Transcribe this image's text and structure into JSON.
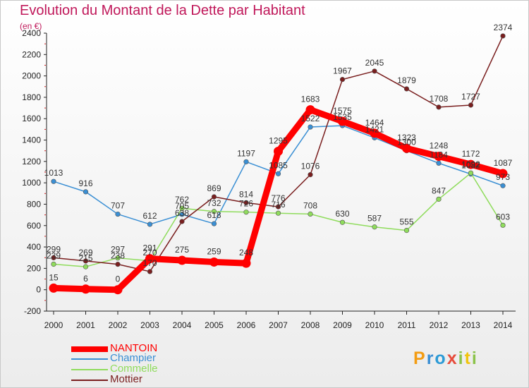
{
  "chart_data": {
    "type": "line",
    "title": "Evolution du Montant de la Dette par Habitant",
    "ylabel": "(en €)",
    "xlabel": "",
    "categories": [
      "2000",
      "2001",
      "2002",
      "2003",
      "2004",
      "2005",
      "2006",
      "2007",
      "2008",
      "2009",
      "2010",
      "2011",
      "2012",
      "2013",
      "2014"
    ],
    "ylim": [
      -200,
      2400
    ],
    "yticks": [
      -200,
      0,
      200,
      400,
      600,
      800,
      1000,
      1200,
      1400,
      1600,
      1800,
      2000,
      2200,
      2400
    ],
    "grid": false,
    "legend_position": "bottom-left",
    "series": [
      {
        "name": "NANTOIN",
        "color": "#ff0000",
        "values": [
          15,
          6,
          0,
          291,
          275,
          259,
          248,
          1295,
          1683,
          1575,
          1464,
          1323,
          1248,
          1172,
          1087
        ]
      },
      {
        "name": "Champier",
        "color": "#3a8fd4",
        "values": [
          1013,
          916,
          707,
          612,
          705,
          618,
          1197,
          1085,
          1522,
          1535,
          1421,
          1300,
          1184,
          1082,
          973
        ]
      },
      {
        "name": "Commelle",
        "color": "#8fdc5c",
        "values": [
          239,
          215,
          297,
          270,
          762,
          732,
          726,
          716,
          708,
          630,
          587,
          555,
          847,
          1092,
          603
        ]
      },
      {
        "name": "Mottier",
        "color": "#7a1f1f",
        "values": [
          299,
          269,
          238,
          170,
          638,
          869,
          814,
          776,
          1076,
          1967,
          2045,
          1879,
          1708,
          1727,
          2374
        ]
      }
    ]
  },
  "logo": {
    "letters": [
      "P",
      "r",
      "o",
      "x",
      "i",
      "t",
      "i"
    ]
  }
}
